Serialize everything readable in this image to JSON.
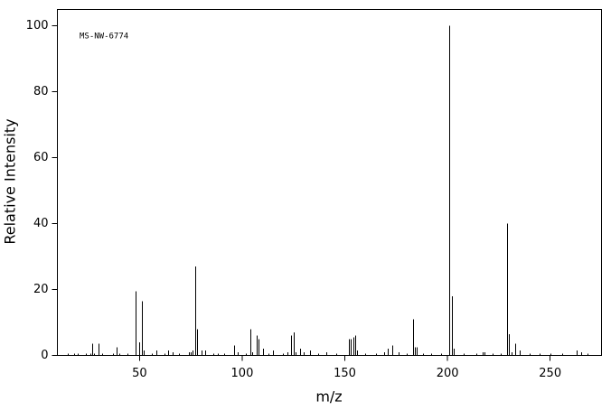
{
  "chart_data": {
    "type": "stem",
    "annotation": "MS-NW-6774",
    "x_label": "m/z",
    "y_label": "Relative Intensity",
    "xlim": [
      10,
      275
    ],
    "ylim": [
      0,
      105
    ],
    "xticks": [
      50,
      100,
      150,
      200,
      250
    ],
    "yticks": [
      0,
      20,
      40,
      60,
      80,
      100
    ],
    "color": "#000000",
    "x": [
      15,
      18,
      20,
      24,
      26,
      27,
      28,
      30,
      32,
      37,
      39,
      40,
      44,
      48,
      50,
      51,
      52,
      56,
      58,
      62,
      64,
      66,
      69,
      74,
      75,
      76,
      77,
      78,
      80,
      82,
      86,
      88,
      91,
      96,
      98,
      102,
      104,
      105,
      107,
      108,
      110,
      113,
      115,
      120,
      122,
      124,
      125,
      126,
      128,
      130,
      133,
      137,
      141,
      146,
      152,
      153,
      154,
      155,
      156,
      160,
      165,
      169,
      171,
      173,
      176,
      180,
      183,
      184,
      185,
      188,
      192,
      197,
      201,
      202,
      203,
      208,
      214,
      217,
      218,
      222,
      226,
      229,
      230,
      231,
      233,
      235,
      240,
      245,
      250,
      256,
      263,
      265,
      268
    ],
    "values": [
      0.5,
      0.5,
      0.5,
      0.5,
      0.5,
      3.5,
      0.5,
      3.5,
      0.5,
      0.5,
      2.5,
      0.5,
      0.5,
      19.5,
      4,
      16.5,
      1.5,
      0.5,
      1.5,
      0.5,
      1.5,
      1,
      0.5,
      1,
      1,
      1.5,
      27,
      8,
      1.5,
      1.5,
      0.5,
      0.5,
      0.5,
      3,
      1,
      0.5,
      8,
      1,
      6,
      5,
      2,
      0.5,
      1.5,
      0.5,
      1,
      6,
      7,
      1,
      2,
      1,
      1.5,
      0.5,
      1,
      0.5,
      5,
      5,
      5.5,
      6,
      1.5,
      0.5,
      0.5,
      1,
      2,
      3,
      1,
      0.5,
      11,
      2.5,
      2.5,
      0.5,
      0.5,
      0.5,
      100,
      18,
      2,
      0.5,
      0.5,
      1,
      1,
      0.5,
      0.5,
      40,
      6.5,
      1,
      3.5,
      1.5,
      0.5,
      0.5,
      0.5,
      0.5,
      1.5,
      1,
      0.5
    ]
  }
}
